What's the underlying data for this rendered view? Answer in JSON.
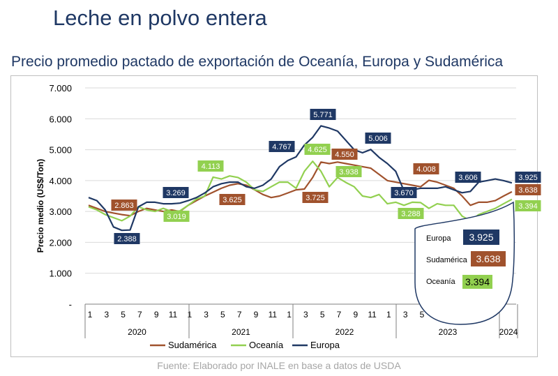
{
  "page": {
    "title": "Leche en polvo entera",
    "subtitle": "Precio promedio pactado de exportación de Oceanía, Europa y Sudamérica",
    "source": "Fuente: Elaborado por INALE en base a datos de USDA"
  },
  "chart_data": {
    "type": "line",
    "title": "Precio promedio pactado de exportación de Oceanía, Europa y Sudamérica",
    "xlabel": "",
    "ylabel": "Precio medio (US$/Ton)",
    "ylim": [
      0,
      7000
    ],
    "yticks": [
      "-",
      "1.000",
      "2.000",
      "3.000",
      "4.000",
      "5.000",
      "6.000",
      "7.000"
    ],
    "x_month_ticks": [
      "1",
      "3",
      "5",
      "7",
      "9",
      "11",
      "1",
      "3",
      "5",
      "7",
      "9",
      "11",
      "1",
      "3",
      "5",
      "7",
      "9",
      "11",
      "1",
      "3",
      "5",
      "7",
      "9",
      "11",
      "1"
    ],
    "years": [
      "2020",
      "2021",
      "2022",
      "2023",
      "2024"
    ],
    "grid": true,
    "legend": "bottom",
    "series": [
      {
        "name": "Sudamérica",
        "color": "#a0522d",
        "values": [
          3200,
          3100,
          3000,
          2950,
          2900,
          2863,
          3000,
          3100,
          3050,
          3000,
          3050,
          3000,
          3200,
          3350,
          3500,
          3625,
          3750,
          3850,
          3900,
          3850,
          3700,
          3550,
          3450,
          3500,
          3600,
          3700,
          3725,
          4100,
          4600,
          4550,
          4600,
          4550,
          4500,
          4450,
          4400,
          4200,
          4000,
          3950,
          3900,
          3850,
          3800,
          4008,
          3950,
          3850,
          3750,
          3500,
          3200,
          3300,
          3300,
          3350,
          3500,
          3638
        ]
      },
      {
        "name": "Oceanía",
        "color": "#92d050",
        "values": [
          3150,
          3050,
          2900,
          2800,
          2700,
          2850,
          3150,
          3050,
          3000,
          3100,
          3000,
          3019,
          3200,
          3400,
          3500,
          4113,
          4050,
          4150,
          4100,
          3950,
          3700,
          3650,
          3800,
          3950,
          3950,
          3750,
          4300,
          4625,
          4300,
          3800,
          4100,
          3938,
          3800,
          3500,
          3450,
          3550,
          3250,
          3300,
          3200,
          3300,
          3288,
          3100,
          3250,
          3200,
          3200,
          2850,
          2700,
          2900,
          3000,
          3100,
          3250,
          3394
        ]
      },
      {
        "name": "Europa",
        "color": "#1f3864",
        "values": [
          3450,
          3350,
          3050,
          2500,
          2388,
          2400,
          3150,
          3300,
          3300,
          3250,
          3250,
          3269,
          3350,
          3450,
          3600,
          3800,
          3900,
          3950,
          3950,
          3800,
          3750,
          3850,
          4050,
          4450,
          4650,
          4767,
          5150,
          5400,
          5771,
          5700,
          5600,
          5300,
          5000,
          4900,
          5006,
          4750,
          4550,
          4300,
          3670,
          3700,
          3750,
          3750,
          3750,
          3800,
          3700,
          3606,
          3650,
          3950,
          4000,
          4050,
          4000,
          3925
        ]
      }
    ],
    "data_labels": [
      {
        "series": "Europa",
        "index": 4,
        "text": "2.388"
      },
      {
        "series": "Europa",
        "index": 11,
        "text": "3.269"
      },
      {
        "series": "Europa",
        "index": 25,
        "text": "4.767"
      },
      {
        "series": "Europa",
        "index": 28,
        "text": "5.771"
      },
      {
        "series": "Europa",
        "index": 34,
        "text": "5.006"
      },
      {
        "series": "Europa",
        "index": 38,
        "text": "3.670"
      },
      {
        "series": "Europa",
        "index": 45,
        "text": "3.606"
      },
      {
        "series": "Europa",
        "index": 51,
        "text": "3.925"
      },
      {
        "series": "Sudamérica",
        "index": 5,
        "text": "2.863"
      },
      {
        "series": "Sudamérica",
        "index": 15,
        "text": "3.625"
      },
      {
        "series": "Sudamérica",
        "index": 26,
        "text": "3.725"
      },
      {
        "series": "Sudamérica",
        "index": 29,
        "text": "4.550"
      },
      {
        "series": "Sudamérica",
        "index": 41,
        "text": "4.008"
      },
      {
        "series": "Sudamérica",
        "index": 51,
        "text": "3.638"
      },
      {
        "series": "Oceanía",
        "index": 11,
        "text": "3.019"
      },
      {
        "series": "Oceanía",
        "index": 15,
        "text": "4.113"
      },
      {
        "series": "Oceanía",
        "index": 27,
        "text": "4.625"
      },
      {
        "series": "Oceanía",
        "index": 31,
        "text": "3.938"
      },
      {
        "series": "Oceanía",
        "index": 40,
        "text": "3.288"
      },
      {
        "series": "Oceanía",
        "index": 51,
        "text": "3.394"
      }
    ],
    "callout": {
      "items": [
        {
          "label": "Europa",
          "value": "3.925",
          "series": "Europa"
        },
        {
          "label": "Sudamérica",
          "value": "3.638",
          "series": "Sudamérica"
        },
        {
          "label": "Oceanía",
          "value": "3.394",
          "series": "Oceanía"
        }
      ]
    }
  }
}
